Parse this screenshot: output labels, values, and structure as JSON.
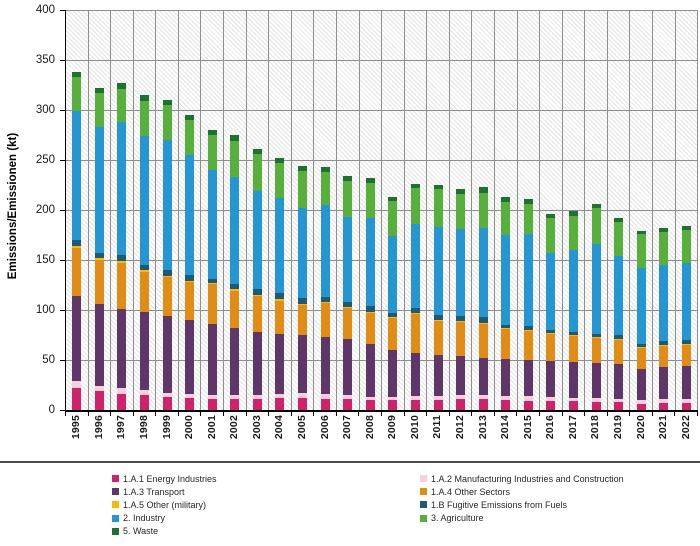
{
  "chart_data": {
    "type": "bar",
    "stacked": true,
    "title": "",
    "xlabel": "",
    "ylabel": "Emissions/Emissionen (kt)",
    "ylim": [
      0,
      400
    ],
    "yticks": [
      0,
      50,
      100,
      150,
      200,
      250,
      300,
      350,
      400
    ],
    "grid": true,
    "plot_background": "hatched",
    "legend_position": "bottom-two-columns",
    "categories": [
      "1995",
      "1996",
      "1997",
      "1998",
      "1999",
      "2000",
      "2001",
      "2002",
      "2003",
      "2004",
      "2005",
      "2006",
      "2007",
      "2008",
      "2009",
      "2010",
      "2011",
      "2012",
      "2013",
      "2014",
      "2015",
      "2016",
      "2017",
      "2018",
      "2019",
      "2020",
      "2021",
      "2022"
    ],
    "series": [
      {
        "name": "1.A.1 Energy Industries",
        "color": "#cf2268",
        "values": [
          22,
          19,
          16,
          15,
          13,
          12,
          11,
          11,
          11,
          12,
          12,
          11,
          11,
          10,
          10,
          10,
          10,
          11,
          11,
          10,
          9,
          9,
          9,
          8,
          8,
          6,
          7,
          7
        ]
      },
      {
        "name": "1.A.2 Manufacturing Industries and Construction",
        "color": "#f9cfe0",
        "values": [
          7,
          5,
          6,
          5,
          4,
          4,
          4,
          4,
          4,
          4,
          5,
          5,
          4,
          3,
          3,
          4,
          4,
          4,
          4,
          4,
          5,
          4,
          3,
          4,
          3,
          4,
          4,
          4
        ]
      },
      {
        "name": "1.A.3 Transport",
        "color": "#5e3667",
        "values": [
          85,
          82,
          79,
          78,
          77,
          74,
          71,
          67,
          63,
          60,
          58,
          57,
          56,
          53,
          47,
          43,
          41,
          39,
          37,
          37,
          36,
          36,
          36,
          35,
          35,
          31,
          32,
          33
        ]
      },
      {
        "name": "1.A.4 Other Sectors",
        "color": "#e18c15",
        "values": [
          48,
          44,
          46,
          40,
          39,
          38,
          40,
          37,
          36,
          33,
          30,
          34,
          31,
          31,
          32,
          39,
          34,
          34,
          34,
          30,
          29,
          27,
          26,
          25,
          24,
          21,
          21,
          21
        ]
      },
      {
        "name": "1.A.5 Other (military)",
        "color": "#fbba00",
        "values": [
          2,
          2,
          2,
          2,
          1,
          1,
          1,
          2,
          1,
          2,
          1,
          1,
          1,
          1,
          1,
          1,
          1,
          1,
          1,
          1,
          1,
          1,
          1,
          1,
          1,
          1,
          1,
          1
        ]
      },
      {
        "name": "1.B Fugitive Emissions from Fuels",
        "color": "#1c5a78",
        "values": [
          6,
          5,
          6,
          5,
          6,
          6,
          4,
          5,
          6,
          6,
          6,
          5,
          5,
          6,
          4,
          5,
          5,
          5,
          6,
          3,
          4,
          3,
          3,
          3,
          4,
          3,
          4,
          4
        ]
      },
      {
        "name": "2. Industry",
        "color": "#2497d3",
        "values": [
          129,
          126,
          133,
          129,
          130,
          120,
          109,
          107,
          98,
          95,
          90,
          92,
          85,
          88,
          77,
          84,
          88,
          87,
          89,
          90,
          92,
          77,
          82,
          90,
          79,
          76,
          76,
          77
        ]
      },
      {
        "name": "3. Agriculture",
        "color": "#58b03c",
        "values": [
          34,
          34,
          33,
          35,
          35,
          35,
          35,
          36,
          37,
          35,
          37,
          33,
          36,
          35,
          35,
          36,
          38,
          35,
          35,
          33,
          30,
          35,
          34,
          36,
          34,
          34,
          33,
          33
        ]
      },
      {
        "name": "5. Waste",
        "color": "#1d7231",
        "values": [
          5,
          5,
          6,
          6,
          5,
          5,
          5,
          6,
          5,
          5,
          5,
          5,
          5,
          5,
          4,
          4,
          4,
          5,
          6,
          5,
          5,
          4,
          5,
          4,
          4,
          3,
          4,
          4
        ]
      }
    ],
    "legend_columns": [
      [
        0,
        2,
        4,
        6,
        8
      ],
      [
        1,
        3,
        5,
        7
      ]
    ]
  }
}
